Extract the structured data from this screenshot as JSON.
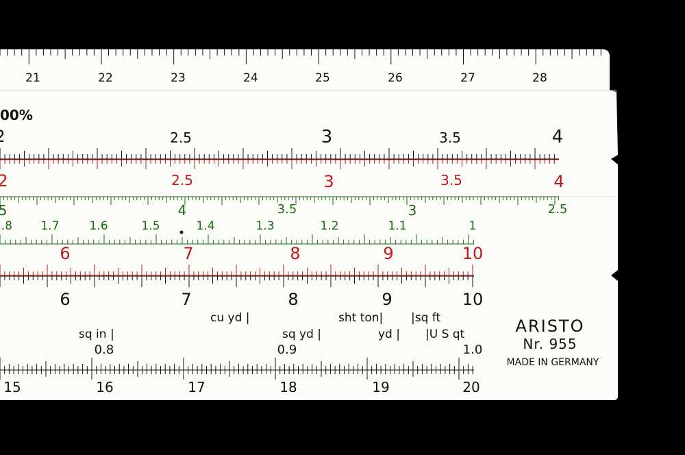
{
  "colors": {
    "background": "#000000",
    "body": "#fbfbf7",
    "black": "#111111",
    "red": "#c01818",
    "green": "#1a6b12"
  },
  "top_rule": [
    "21",
    "22",
    "23",
    "24",
    "25",
    "26",
    "27",
    "28"
  ],
  "percent_label": "00%",
  "scale_a_black": [
    "2",
    "2.5",
    "3",
    "3.5",
    "4"
  ],
  "scale_b_red": [
    "2",
    "2.5",
    "3",
    "3.5",
    "4"
  ],
  "scale_green_upper": [
    "5",
    "4",
    "3.5",
    "3",
    "2.5"
  ],
  "scale_green_ci": [
    ".8",
    "1.7",
    "1.6",
    "1.5",
    "1.4",
    "1.3",
    "1.2",
    "1.1",
    "1"
  ],
  "scale_c_red": [
    "6",
    "7",
    "8",
    "9",
    "10"
  ],
  "scale_d_black": [
    "6",
    "7",
    "8",
    "9",
    "10"
  ],
  "conversions_row1": [
    "cu yd |",
    "sht ton|",
    "|sq ft"
  ],
  "conversions_row2": [
    "sq in |",
    "sq yd |",
    "yd |",
    "|U S qt"
  ],
  "decimal_marks": [
    "0.8",
    "0.9",
    "1.0"
  ],
  "bottom_rule": [
    "15",
    "16",
    "17",
    "18",
    "19",
    "20"
  ],
  "brand": {
    "name": "ARISTO",
    "model": "Nr. 955",
    "origin": "MADE IN GERMANY"
  }
}
